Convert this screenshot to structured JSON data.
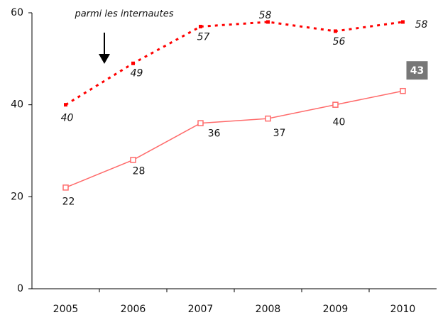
{
  "chart_data": {
    "type": "line",
    "categories": [
      "2005",
      "2006",
      "2007",
      "2008",
      "2009",
      "2010"
    ],
    "series": [
      {
        "color": "#ff0000",
        "style": "dotted",
        "values": [
          40,
          49,
          57,
          58,
          56,
          58
        ]
      },
      {
        "color": "#ff6b6b",
        "style": "solid",
        "values": [
          22,
          28,
          36,
          37,
          40,
          43
        ]
      }
    ],
    "annotations": [
      "parmi les internautes"
    ],
    "ylim": [
      0,
      60
    ],
    "yticks": [
      0,
      20,
      40,
      60
    ],
    "grid": false
  }
}
